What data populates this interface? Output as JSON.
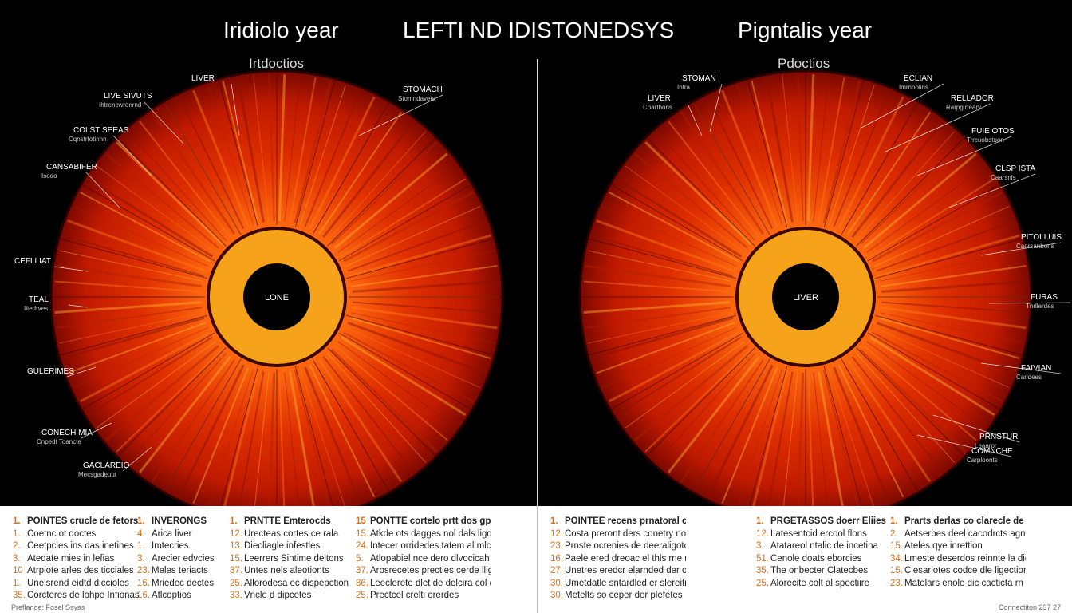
{
  "header": {
    "left_title": "Iridiolo year",
    "center_title": "LEFTI ND IDISTONEDSYS",
    "right_title": "Pigntalis year",
    "left_subtitle": "Irtdoctios",
    "right_subtitle": "Pdoctios"
  },
  "left_iris": {
    "center_label": "LONE",
    "labels": [
      {
        "title": "LIVER",
        "sub": ""
      },
      {
        "title": "LIVE SIVUTS",
        "sub": "Ihtrencwronrnd"
      },
      {
        "title": "COLST SEEAS",
        "sub": "Cqnstrfotinnn"
      },
      {
        "title": "CANSABIFER",
        "sub": "Isodo"
      },
      {
        "title": "CEFLLIAT",
        "sub": ""
      },
      {
        "title": "TEAL",
        "sub": "Iltedrves"
      },
      {
        "title": "GULERIMES",
        "sub": ""
      },
      {
        "title": "CONECH MIA",
        "sub": "Cnpedt Toancte"
      },
      {
        "title": "GACLAREIO",
        "sub": "Mecsgadeuut"
      },
      {
        "title": "STOMACH",
        "sub": "Stomndaveta"
      }
    ]
  },
  "right_iris": {
    "center_label": "LIVER",
    "labels": [
      {
        "title": "STOMAN",
        "sub": "Infra"
      },
      {
        "title": "LIVER",
        "sub": "Coarthons"
      },
      {
        "title": "ECLIAN",
        "sub": "Imrnoolins"
      },
      {
        "title": "RELLADOR",
        "sub": "Rarpglrteary"
      },
      {
        "title": "FUIE OTOS",
        "sub": "Trrcuobstuon"
      },
      {
        "title": "CLSP ISTA",
        "sub": "Caarsnis"
      },
      {
        "title": "PITOLLUIS",
        "sub": "Caorsanbons"
      },
      {
        "title": "FURAS",
        "sub": "Tnrllerdes"
      },
      {
        "title": "FAIVIAN",
        "sub": "Carldees"
      },
      {
        "title": "PRNSTUR",
        "sub": "Leaaror"
      },
      {
        "title": "COMNCHE",
        "sub": "Carploonts"
      }
    ]
  },
  "legend": {
    "columns": [
      {
        "head_num": "1.",
        "head": "POINTES crucle de fetors",
        "items": [
          {
            "n": "1.",
            "t": "Coetnc ot doctes"
          },
          {
            "n": "2.",
            "t": "Ceetpcles ins das inetines"
          },
          {
            "n": "3.",
            "t": "Atedate mies in lefias"
          },
          {
            "n": "10",
            "t": "Atrpiote arles des ticciales"
          },
          {
            "n": "1.",
            "t": "Unelsrend eidtd diccioles"
          },
          {
            "n": "35.",
            "t": "Corcteres de lohpe Infionas"
          }
        ]
      },
      {
        "head_num": "1.",
        "head": "INVERONGS",
        "items": [
          {
            "n": "4.",
            "t": "Arica liver"
          },
          {
            "n": "1.",
            "t": "Imtecries"
          },
          {
            "n": "3.",
            "t": "Arecier edvcies"
          },
          {
            "n": "23.",
            "t": "Meles teriacts"
          },
          {
            "n": "16.",
            "t": "Mriedec dectes"
          },
          {
            "n": "16.",
            "t": "Atlcoptios"
          }
        ]
      },
      {
        "head_num": "1.",
        "head": "PRNTTE Emterocds",
        "items": [
          {
            "n": "12.",
            "t": "Urecteas cortes ce rala"
          },
          {
            "n": "13.",
            "t": "Diecliagle infestles"
          },
          {
            "n": "15.",
            "t": "Leerrers Sintime deltons"
          },
          {
            "n": "37.",
            "t": "Untes nels aleotionts"
          },
          {
            "n": "25.",
            "t": "Allorodesa ec dispepction"
          },
          {
            "n": "33.",
            "t": "Vncle d dipcetes"
          }
        ]
      },
      {
        "head_num": "15",
        "head": "PONTTE cortelo prtt dos gpades",
        "items": [
          {
            "n": "15.",
            "t": "Atkde ots dagges nol dals ligdetiois"
          },
          {
            "n": "24.",
            "t": "Intecer orridedes tatem al mlchigs"
          },
          {
            "n": "5.",
            "t": "Atlopabiel nce dero dlvocicah orriires"
          },
          {
            "n": "37.",
            "t": "Arosrecetes precties cerde lligectica"
          },
          {
            "n": "86.",
            "t": "Leeclerete dlet de delcira col de dipection"
          },
          {
            "n": "25.",
            "t": "Prectcel crelti orerdes"
          }
        ]
      },
      {
        "head_num": "1.",
        "head": "POINTEE recens prnatoral ch de refarcioes",
        "items": [
          {
            "n": "12.",
            "t": "Costa preront ders conetry noo lernervetiane"
          },
          {
            "n": "23.",
            "t": "Prnste ocrenies de deeraligotce otrales"
          },
          {
            "n": "16.",
            "t": "Paele ered dreoac el thls rne rouclneoniminto"
          },
          {
            "n": "27.",
            "t": "Unetres eredcr elarnded der ohalcmpetms"
          },
          {
            "n": "30.",
            "t": "Umetdatle sntardled er slereitioo celebrnie"
          },
          {
            "n": "30.",
            "t": "Metelts so ceper der plefetes"
          }
        ]
      },
      {
        "head_num": "1.",
        "head": "PRGETASSOS doerr Eliies",
        "items": [
          {
            "n": "12.",
            "t": "Latesentcid ercool flons"
          },
          {
            "n": "3.",
            "t": "Atatareol ntalic de incetina"
          },
          {
            "n": "51.",
            "t": "Cenole doats eborcies"
          },
          {
            "n": "35.",
            "t": "The onbecter Clatecbes"
          },
          {
            "n": "25.",
            "t": "Alorecite colt al spectiire"
          }
        ]
      },
      {
        "head_num": "1.",
        "head": "Prarts derlas co clarecle de glgtesbts",
        "items": [
          {
            "n": "2.",
            "t": "Aetserbes deel cacodrcts agntine"
          },
          {
            "n": "15.",
            "t": "Ateles qye inrettion"
          },
          {
            "n": "34.",
            "t": "Lmeste deserdos reinnte la digeccia"
          },
          {
            "n": "15.",
            "t": "Clesarlotes codce dle ligection"
          },
          {
            "n": "23.",
            "t": "Matelars enole dic cacticta rn meclehe"
          }
        ]
      }
    ]
  },
  "footer": {
    "left": "Preflange: Fosel Ssyas",
    "right": "Connectiton 237 27"
  },
  "colors": {
    "iris_dark": "#8a0a00",
    "iris_mid": "#e03000",
    "iris_light": "#ff8a10",
    "pupil_ring": "#f7a21b",
    "pupil": "#000000",
    "accent": "#e07010"
  }
}
